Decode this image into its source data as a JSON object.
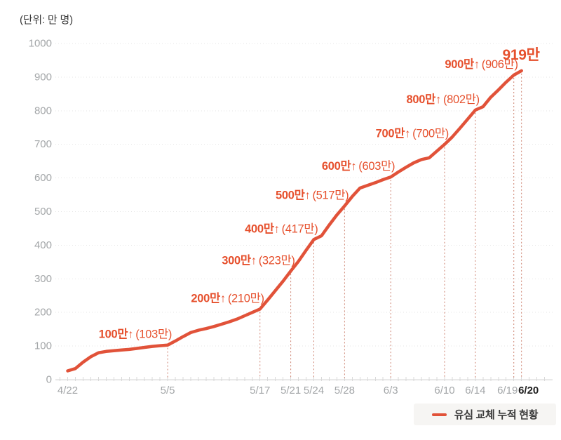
{
  "colors": {
    "line": "#e15239",
    "annotation": "#e6502d",
    "milestone_guide": "#cd8270",
    "gridline": "#e6e6e6",
    "axis_line": "#dcdcdc",
    "tick_mark": "#d9d9d9",
    "axis_label": "#a3a6a8",
    "axis_label_bold": "#1f1f1f",
    "unit_label": "#3a3a3a",
    "legend_bg": "#f6f5f3",
    "legend_text": "#3a3a3a",
    "background": "#ffffff"
  },
  "legend": {
    "label": "유심 교체 누적 현황"
  },
  "chart_data": {
    "type": "line",
    "title": "유심 교체 누적 현황",
    "unit_label": "(단위: 만 명)",
    "series_name": "유심 교체 누적 현황",
    "xlabel": "",
    "ylabel": "만 명",
    "ylim": [
      0,
      1000
    ],
    "ytick_step": 100,
    "grid": "horizontal-dotted",
    "legend_position": "bottom-right",
    "x_dates": [
      "4/22",
      "4/23",
      "4/24",
      "4/25",
      "4/26",
      "4/27",
      "4/28",
      "4/29",
      "4/30",
      "5/1",
      "5/2",
      "5/3",
      "5/4",
      "5/5",
      "5/6",
      "5/7",
      "5/8",
      "5/9",
      "5/10",
      "5/11",
      "5/12",
      "5/13",
      "5/14",
      "5/15",
      "5/16",
      "5/17",
      "5/18",
      "5/19",
      "5/20",
      "5/21",
      "5/22",
      "5/23",
      "5/24",
      "5/25",
      "5/26",
      "5/27",
      "5/28",
      "5/29",
      "5/30",
      "5/31",
      "6/1",
      "6/2",
      "6/3",
      "6/4",
      "6/5",
      "6/6",
      "6/7",
      "6/8",
      "6/9",
      "6/10",
      "6/11",
      "6/12",
      "6/13",
      "6/14",
      "6/15",
      "6/16",
      "6/17",
      "6/18",
      "6/19",
      "6/20"
    ],
    "values": [
      26,
      33,
      52,
      68,
      80,
      84,
      86,
      88,
      90,
      93,
      96,
      99,
      101,
      103,
      115,
      128,
      140,
      147,
      152,
      158,
      165,
      172,
      180,
      190,
      200,
      210,
      237,
      265,
      293,
      323,
      352,
      385,
      417,
      428,
      460,
      490,
      517,
      545,
      570,
      578,
      586,
      595,
      603,
      618,
      632,
      645,
      655,
      660,
      680,
      700,
      722,
      748,
      775,
      802,
      812,
      840,
      862,
      885,
      906,
      919
    ],
    "xticks": [
      {
        "label": "4/22",
        "index": 0
      },
      {
        "label": "5/5",
        "index": 13
      },
      {
        "label": "5/17",
        "index": 25
      },
      {
        "label": "5/21",
        "index": 29
      },
      {
        "label": "5/24",
        "index": 32
      },
      {
        "label": "5/28",
        "index": 36
      },
      {
        "label": "6/3",
        "index": 42
      },
      {
        "label": "6/10",
        "index": 49
      },
      {
        "label": "6/14",
        "index": 53
      },
      {
        "label": "6/19",
        "index": 58,
        "dx": -9
      },
      {
        "label": "6/20",
        "index": 59,
        "dx": 10,
        "bold": true
      }
    ],
    "milestones": [
      {
        "index": 13,
        "date": "5/5",
        "value": 103,
        "label": "100만↑",
        "detail": "(103만)"
      },
      {
        "index": 25,
        "date": "5/17",
        "value": 210,
        "label": "200만↑",
        "detail": "(210만)"
      },
      {
        "index": 29,
        "date": "5/21",
        "value": 323,
        "label": "300만↑",
        "detail": "(323만)"
      },
      {
        "index": 32,
        "date": "5/24",
        "value": 417,
        "label": "400만↑",
        "detail": "(417만)"
      },
      {
        "index": 36,
        "date": "5/28",
        "value": 517,
        "label": "500만↑",
        "detail": "(517만)"
      },
      {
        "index": 42,
        "date": "6/3",
        "value": 603,
        "label": "600만↑",
        "detail": "(603만)"
      },
      {
        "index": 49,
        "date": "6/10",
        "value": 700,
        "label": "700만↑",
        "detail": "(700만)"
      },
      {
        "index": 53,
        "date": "6/14",
        "value": 802,
        "label": "800만↑",
        "detail": "(802만)"
      },
      {
        "index": 58,
        "date": "6/19",
        "value": 906,
        "label": "900만↑",
        "detail": "(906만)"
      }
    ],
    "final_annotation": {
      "index": 59,
      "date": "6/20",
      "value": 919,
      "label": "919만"
    }
  }
}
